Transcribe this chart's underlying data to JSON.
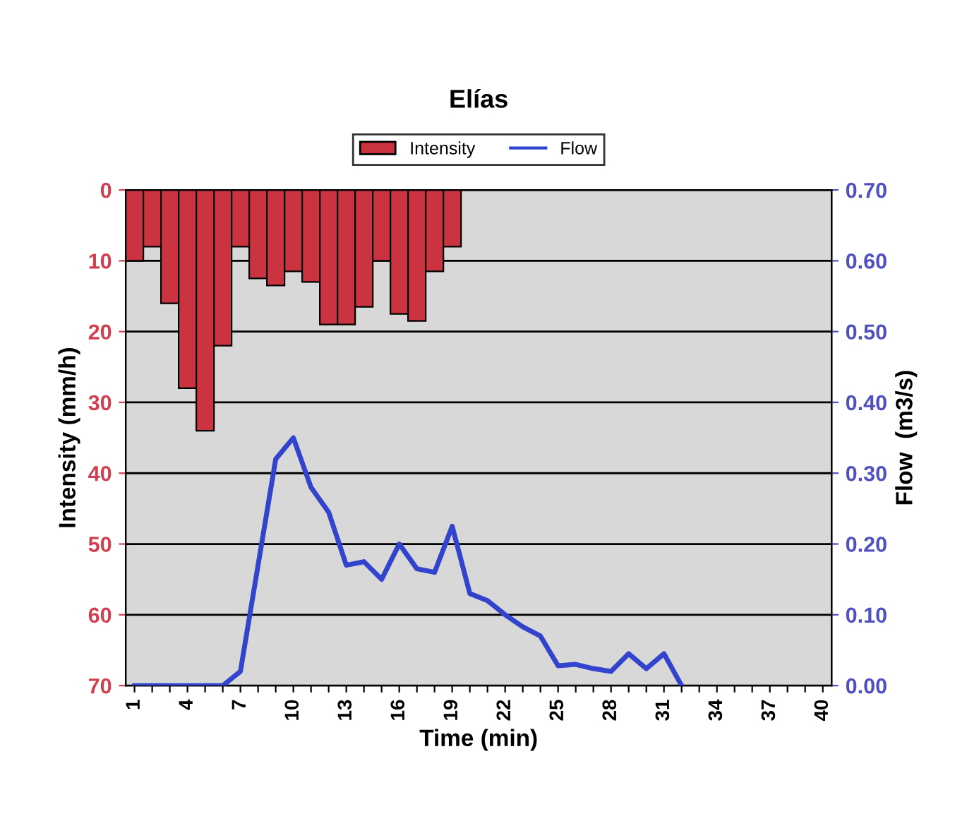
{
  "chart_data": {
    "type": "bar",
    "title": "Elías",
    "xlabel": "Time (min)",
    "ylabel": "Intensity (mm/h)",
    "y2label": "Flow  (m3/s)",
    "categories": [
      "1",
      null,
      null,
      "4",
      null,
      null,
      "7",
      null,
      null,
      "10",
      null,
      null,
      "13",
      null,
      null,
      "16",
      null,
      null,
      "19",
      null,
      null,
      "22",
      null,
      null,
      "25",
      null,
      null,
      "28",
      null,
      null,
      "31",
      null,
      null,
      "34",
      null,
      null,
      "37",
      null,
      null,
      "40"
    ],
    "series": [
      {
        "name": "Intensity",
        "color": "#cc3340",
        "values": [
          10,
          8,
          16,
          28,
          34,
          22,
          8,
          12.5,
          13.5,
          11.5,
          13,
          19,
          19,
          16.5,
          10,
          17.5,
          18.5,
          11.5,
          8,
          null,
          null,
          null,
          null,
          null,
          null,
          null,
          null,
          null,
          null,
          null,
          null,
          null,
          null,
          null,
          null,
          null,
          null,
          null,
          null,
          null
        ]
      },
      {
        "name": "Flow",
        "type": "line",
        "axis": "y2",
        "color": "#3344cc",
        "values": [
          0,
          0,
          0,
          0,
          0,
          0,
          0.02,
          0.17,
          0.32,
          0.35,
          0.28,
          0.245,
          0.17,
          0.175,
          0.15,
          0.2,
          0.165,
          0.16,
          0.225,
          0.13,
          0.12,
          0.1,
          0.083,
          0.07,
          0.028,
          0.03,
          0.024,
          0.02,
          0.045,
          0.024,
          0.045,
          0,
          null,
          null,
          null,
          null,
          null,
          null,
          null,
          null
        ]
      }
    ],
    "ylim": [
      70,
      0
    ],
    "yticks": [
      0,
      10,
      20,
      30,
      40,
      50,
      60,
      70
    ],
    "y2lim": [
      0,
      0.7
    ],
    "y2ticks": [
      {
        "value": 0,
        "label": "0.00"
      },
      {
        "value": 0.1,
        "label": "0.10"
      },
      {
        "value": 0.2,
        "label": "0.20"
      },
      {
        "value": 0.3,
        "label": "0.30"
      },
      {
        "value": 0.4,
        "label": "0.40"
      },
      {
        "value": 0.5,
        "label": "0.50"
      },
      {
        "value": 0.6,
        "label": "0.60"
      },
      {
        "value": 0.7,
        "label": "0.70"
      }
    ],
    "grid": "y",
    "legend": "top",
    "marker": "none",
    "line_style": "solid"
  }
}
